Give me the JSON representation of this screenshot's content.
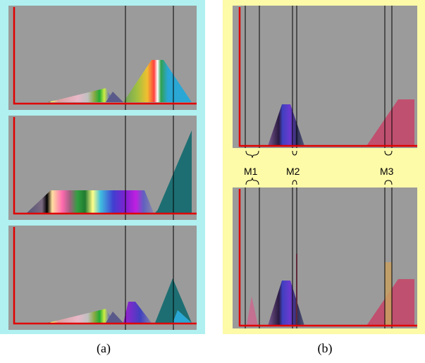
{
  "captions": {
    "a": "(a)",
    "b": "(b)"
  },
  "markers": {
    "m1": "M1",
    "m2": "M2",
    "m3": "M3"
  },
  "colors": {
    "frame_a": "#b0f0f0",
    "frame_b": "#fdfaa8",
    "plot_bg": "#9b9b9b",
    "axis": "#ff0000",
    "cursor_line": "#000000",
    "teal_shape": "#1d6e72",
    "cyan_shape": "#2aa7d4",
    "rose_shape": "#c0506f",
    "purple_shape": "#8a2be2"
  }
}
